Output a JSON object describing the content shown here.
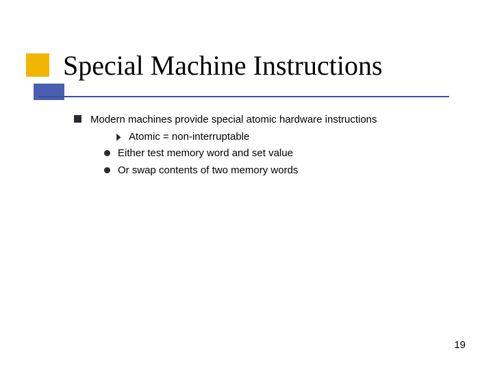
{
  "slide": {
    "title": "Special Machine Instructions",
    "page_number": "19",
    "bullets": {
      "main": "Modern machines provide special atomic hardware instructions",
      "sub_arrow": "Atomic = non-interruptable",
      "sub_circle_1": "Either test memory word and set value",
      "sub_circle_2": "Or swap contents of two memory words"
    },
    "colors": {
      "yellow": "#f2b600",
      "blue": "#4a5fb1",
      "underline": "#3a4f9f",
      "bullet": "#2a2a30",
      "text": "#000000",
      "background": "#ffffff"
    }
  }
}
